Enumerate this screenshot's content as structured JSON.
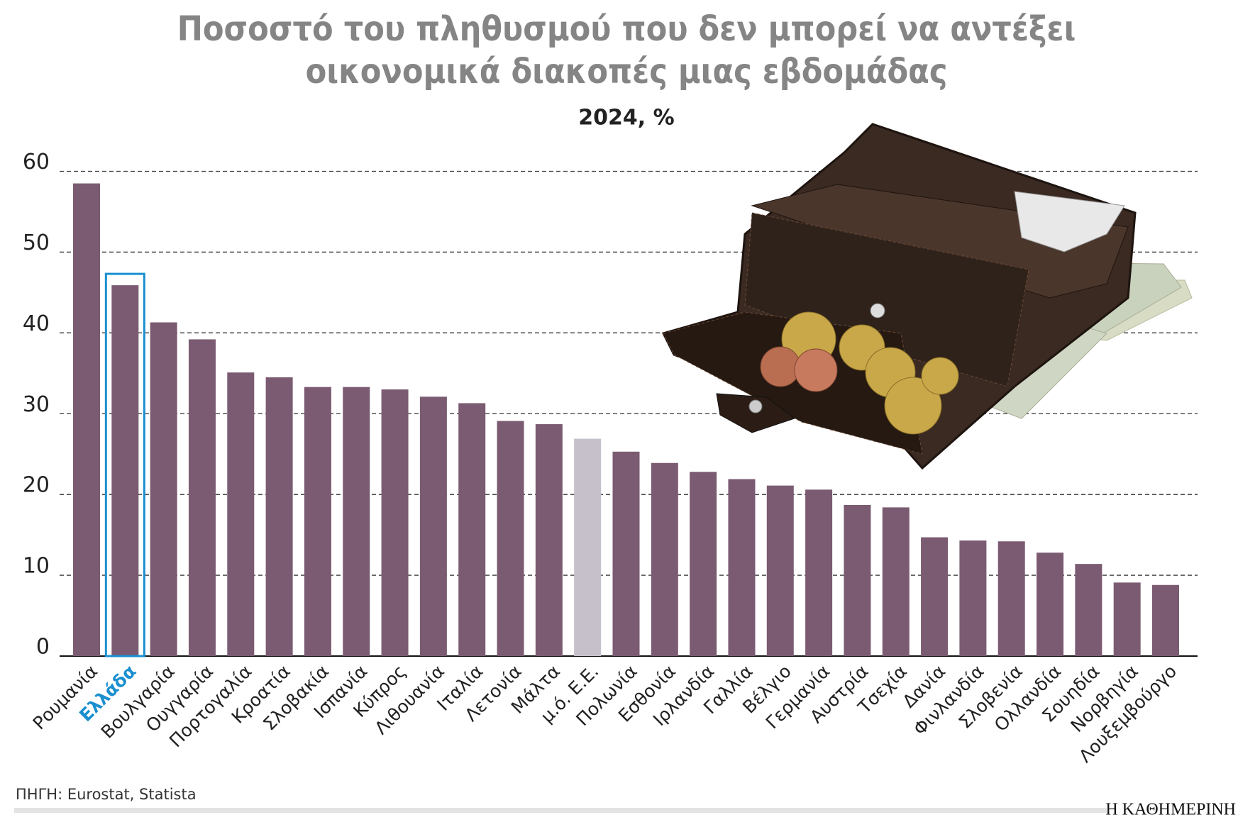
{
  "chart_data": {
    "type": "bar",
    "title": [
      "Ποσοστό του πληθυσμού που δεν μπορεί να αντέξει",
      "οικονομικά διακοπές μιας εβδομάδας"
    ],
    "subtitle": "2024, %",
    "categories": [
      "Ρουμανία",
      "Ελλάδα",
      "Βουλγαρία",
      "Ουγγαρία",
      "Πορτογαλία",
      "Κροατία",
      "Σλοβακία",
      "Ισπανία",
      "Κύπρος",
      "Λιθουανία",
      "Ιταλία",
      "Λετονία",
      "Μάλτα",
      "μ.ό. Ε.Ε.",
      "Πολωνία",
      "Εσθονία",
      "Ιρλανδία",
      "Γαλλία",
      "Βέλγιο",
      "Γερμανία",
      "Αυστρία",
      "Τσεχία",
      "Δανία",
      "Φινλανδία",
      "Σλοβενία",
      "Ολλανδία",
      "Σουηδία",
      "Νορβηγία",
      "Λουξεμβούργο"
    ],
    "values": [
      58.5,
      45.9,
      41.3,
      39.2,
      35.1,
      34.5,
      33.3,
      33.3,
      33.0,
      32.1,
      31.3,
      29.1,
      28.7,
      26.9,
      25.3,
      23.9,
      22.8,
      21.9,
      21.1,
      20.6,
      18.7,
      18.4,
      14.7,
      14.3,
      14.2,
      12.8,
      11.4,
      9.1,
      8.8
    ],
    "color": "#7b5b72",
    "colors": [
      "#7b5b72",
      "#7b5b72",
      "#7b5b72",
      "#7b5b72",
      "#7b5b72",
      "#7b5b72",
      "#7b5b72",
      "#7b5b72",
      "#7b5b72",
      "#7b5b72",
      "#7b5b72",
      "#7b5b72",
      "#7b5b72",
      "#c6c0cb",
      "#7b5b72",
      "#7b5b72",
      "#7b5b72",
      "#7b5b72",
      "#7b5b72",
      "#7b5b72",
      "#7b5b72",
      "#7b5b72",
      "#7b5b72",
      "#7b5b72",
      "#7b5b72",
      "#7b5b72",
      "#7b5b72",
      "#7b5b72",
      "#7b5b72"
    ],
    "highlight": 1,
    "highlight_color": "#1a8fd0",
    "ylim": [
      0,
      60
    ],
    "yticks": [
      0,
      10,
      20,
      30,
      40,
      50,
      60
    ],
    "grid": true,
    "source": "ΠΗΓΗ: Eurostat, Statista",
    "publisher": "Η ΚΑΘΗΜΕΡΙΝΗ"
  }
}
